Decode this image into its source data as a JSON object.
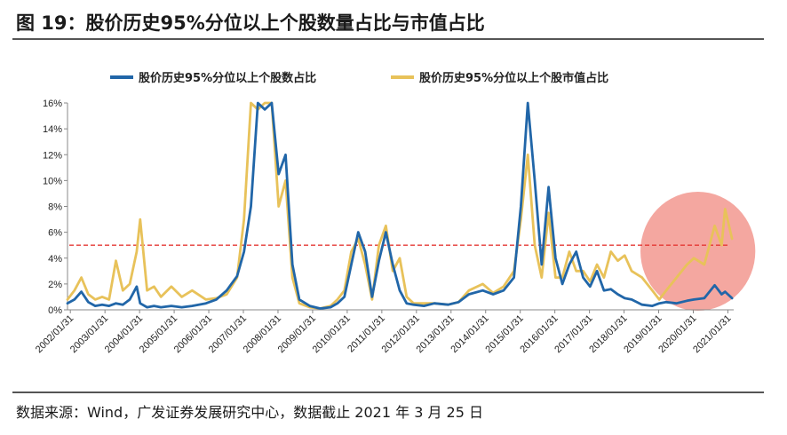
{
  "title": "图  19：股价历史95%分位以上个股数量占比与市值占比",
  "source": "数据来源：Wind，广发证券发展研究中心，数据截止 2021 年 3 月 25 日",
  "chart_data": {
    "type": "line",
    "title": "",
    "xlabel": "",
    "ylabel": "",
    "ylim": [
      0,
      16
    ],
    "y_ticks": [
      "0%",
      "2%",
      "4%",
      "6%",
      "8%",
      "10%",
      "12%",
      "14%",
      "16%"
    ],
    "x_ticks": [
      "2002/01/31",
      "2003/01/31",
      "2004/01/31",
      "2005/01/31",
      "2006/01/31",
      "2007/01/31",
      "2008/01/31",
      "2009/01/31",
      "2010/01/31",
      "2011/01/31",
      "2012/01/31",
      "2013/01/31",
      "2014/01/31",
      "2015/01/31",
      "2016/01/31",
      "2017/01/31",
      "2018/01/31",
      "2019/01/31",
      "2020/01/31",
      "2021/01/31"
    ],
    "reference_line": {
      "y": 5,
      "color": "#e53935",
      "style": "dashed"
    },
    "highlight": {
      "x_range": [
        "2019/07/31",
        "2021/03/25"
      ],
      "color": "#f08a80"
    },
    "series": [
      {
        "name": "股价历史95%分位以上个股数占比",
        "color": "#2166a8",
        "x": [
          2002.0,
          2002.2,
          2002.4,
          2002.6,
          2002.8,
          2003.0,
          2003.2,
          2003.4,
          2003.6,
          2003.8,
          2004.0,
          2004.1,
          2004.3,
          2004.5,
          2004.7,
          2005.0,
          2005.3,
          2005.6,
          2006.0,
          2006.3,
          2006.6,
          2006.9,
          2007.1,
          2007.3,
          2007.5,
          2007.7,
          2007.9,
          2008.1,
          2008.3,
          2008.5,
          2008.7,
          2009.0,
          2009.3,
          2009.6,
          2009.8,
          2010.0,
          2010.2,
          2010.4,
          2010.6,
          2010.8,
          2011.0,
          2011.2,
          2011.4,
          2011.6,
          2011.8,
          2012.0,
          2012.3,
          2012.6,
          2013.0,
          2013.3,
          2013.6,
          2014.0,
          2014.3,
          2014.6,
          2014.9,
          2015.1,
          2015.3,
          2015.5,
          2015.7,
          2015.9,
          2016.1,
          2016.3,
          2016.5,
          2016.7,
          2016.9,
          2017.1,
          2017.3,
          2017.5,
          2017.7,
          2017.9,
          2018.1,
          2018.3,
          2018.6,
          2018.9,
          2019.1,
          2019.3,
          2019.6,
          2019.9,
          2020.1,
          2020.4,
          2020.7,
          2020.9,
          2021.0,
          2021.2
        ],
        "values": [
          0.5,
          0.8,
          1.4,
          0.6,
          0.3,
          0.4,
          0.3,
          0.5,
          0.4,
          0.8,
          1.8,
          0.5,
          0.2,
          0.3,
          0.2,
          0.3,
          0.2,
          0.3,
          0.5,
          0.8,
          1.5,
          2.6,
          4.5,
          8.0,
          16.0,
          15.5,
          16.0,
          10.5,
          12.0,
          3.5,
          0.8,
          0.3,
          0.1,
          0.2,
          0.5,
          1.0,
          3.5,
          6.0,
          4.5,
          1.0,
          3.8,
          6.0,
          3.5,
          1.5,
          0.5,
          0.4,
          0.3,
          0.5,
          0.4,
          0.6,
          1.2,
          1.5,
          1.2,
          1.5,
          2.5,
          8.0,
          16.0,
          10.0,
          3.5,
          9.5,
          4.0,
          2.0,
          3.5,
          4.5,
          2.5,
          1.8,
          3.0,
          1.5,
          1.6,
          1.2,
          0.9,
          0.8,
          0.4,
          0.3,
          0.5,
          0.6,
          0.5,
          0.7,
          0.8,
          0.9,
          1.9,
          1.2,
          1.4,
          0.9
        ]
      },
      {
        "name": "股价历史95%分位以上个股市值占比",
        "color": "#e8c25a",
        "x": [
          2002.0,
          2002.2,
          2002.4,
          2002.6,
          2002.8,
          2003.0,
          2003.2,
          2003.4,
          2003.6,
          2003.8,
          2004.0,
          2004.1,
          2004.3,
          2004.5,
          2004.7,
          2005.0,
          2005.3,
          2005.6,
          2006.0,
          2006.3,
          2006.6,
          2006.9,
          2007.1,
          2007.3,
          2007.5,
          2007.7,
          2007.9,
          2008.1,
          2008.3,
          2008.5,
          2008.7,
          2009.0,
          2009.3,
          2009.6,
          2009.8,
          2010.0,
          2010.2,
          2010.4,
          2010.6,
          2010.8,
          2011.0,
          2011.2,
          2011.4,
          2011.6,
          2011.8,
          2012.0,
          2012.3,
          2012.6,
          2013.0,
          2013.3,
          2013.6,
          2014.0,
          2014.3,
          2014.6,
          2014.9,
          2015.1,
          2015.3,
          2015.5,
          2015.7,
          2015.9,
          2016.1,
          2016.3,
          2016.5,
          2016.7,
          2016.9,
          2017.1,
          2017.3,
          2017.5,
          2017.7,
          2017.9,
          2018.1,
          2018.3,
          2018.6,
          2018.9,
          2019.1,
          2019.3,
          2019.6,
          2019.9,
          2020.1,
          2020.4,
          2020.7,
          2020.9,
          2021.0,
          2021.2
        ],
        "values": [
          0.8,
          1.5,
          2.5,
          1.2,
          0.8,
          1.0,
          0.8,
          3.8,
          1.5,
          2.0,
          4.5,
          7.0,
          1.5,
          1.8,
          1.0,
          1.8,
          1.0,
          1.5,
          0.8,
          0.9,
          1.2,
          2.5,
          7.0,
          16.0,
          15.5,
          16.0,
          16.0,
          8.0,
          10.0,
          2.5,
          0.5,
          0.2,
          0.1,
          0.3,
          0.8,
          1.5,
          4.5,
          5.5,
          3.5,
          0.8,
          5.0,
          6.5,
          3.0,
          4.0,
          1.0,
          0.5,
          0.5,
          0.5,
          0.4,
          0.6,
          1.5,
          2.0,
          1.3,
          1.8,
          3.0,
          7.0,
          12.0,
          5.0,
          2.5,
          7.5,
          2.5,
          2.5,
          4.5,
          3.0,
          3.0,
          2.2,
          3.5,
          2.5,
          4.5,
          3.8,
          4.2,
          3.0,
          2.5,
          1.5,
          0.8,
          1.5,
          2.5,
          3.5,
          4.0,
          3.5,
          6.5,
          5.0,
          7.8,
          5.5
        ]
      }
    ]
  }
}
